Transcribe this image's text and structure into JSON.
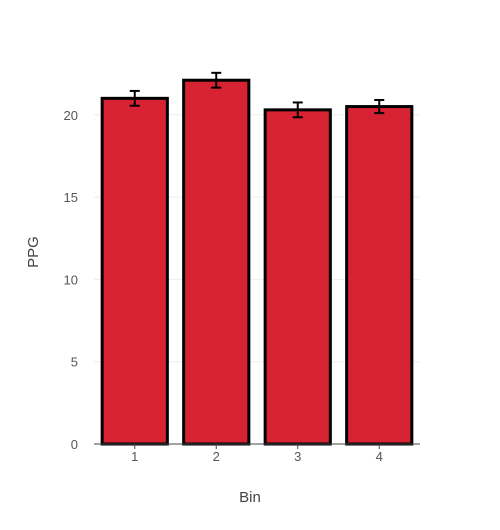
{
  "chart_data": {
    "type": "bar",
    "title": "",
    "xlabel": "Bin",
    "ylabel": "PPG",
    "categories": [
      "1",
      "2",
      "3",
      "4"
    ],
    "values": [
      21.0,
      22.1,
      20.3,
      20.5
    ],
    "error_bars": [
      0.45,
      0.45,
      0.45,
      0.4
    ],
    "ylim": [
      0,
      22.6
    ],
    "y_ticks": [
      0,
      5,
      10,
      15,
      20
    ],
    "grid": true,
    "legend": "none",
    "colors": {
      "bar_fill": "#d62232",
      "bar_stroke": "#000000",
      "error_bar": "#000000",
      "grid": "#eeeeee",
      "axis_line": "#444444",
      "tick_text": "#555555",
      "label_text": "#444444"
    }
  }
}
